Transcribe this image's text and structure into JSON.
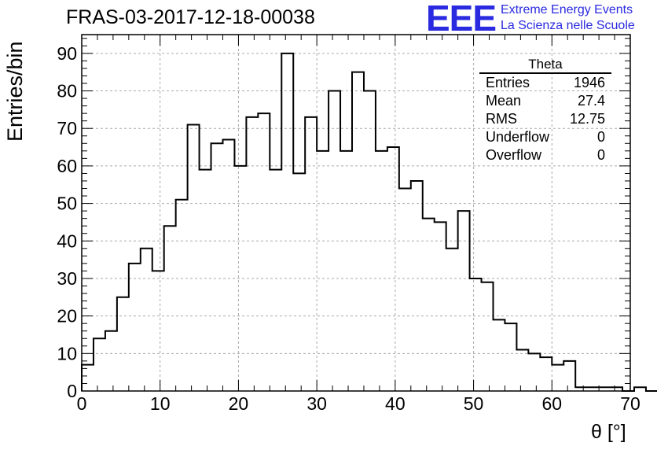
{
  "title": "FRAS-03-2017-12-18-00038",
  "logo": {
    "mark": "EEE",
    "line1": "Extreme Energy Events",
    "line2": "La Scienza nelle Scuole",
    "color": "#2a2ae0"
  },
  "stats_box": {
    "title": "Theta",
    "rows": [
      {
        "label": "Entries",
        "value": "1946"
      },
      {
        "label": "Mean",
        "value": "27.4"
      },
      {
        "label": "RMS",
        "value": "12.75"
      },
      {
        "label": "Underflow",
        "value": "0"
      },
      {
        "label": "Overflow",
        "value": "0"
      }
    ]
  },
  "chart_data": {
    "type": "bar",
    "histogram": true,
    "xlabel": "θ [°]",
    "ylabel": "Entries/bin",
    "xlim": [
      0,
      70
    ],
    "ylim": [
      0,
      95
    ],
    "bin_width": 1.5,
    "x_ticks": [
      0,
      10,
      20,
      30,
      40,
      50,
      60,
      70
    ],
    "y_ticks": [
      0,
      10,
      20,
      30,
      40,
      50,
      60,
      70,
      80,
      90
    ],
    "grid": true,
    "values": [
      7,
      14,
      16,
      25,
      34,
      38,
      32,
      44,
      51,
      71,
      59,
      66,
      67,
      60,
      73,
      74,
      59,
      90,
      58,
      73,
      64,
      80,
      64,
      85,
      80,
      64,
      65,
      54,
      56,
      46,
      45,
      38,
      48,
      30,
      29,
      19,
      18,
      11,
      10,
      9,
      7,
      8,
      1,
      1,
      1,
      1,
      0,
      1,
      0
    ]
  }
}
